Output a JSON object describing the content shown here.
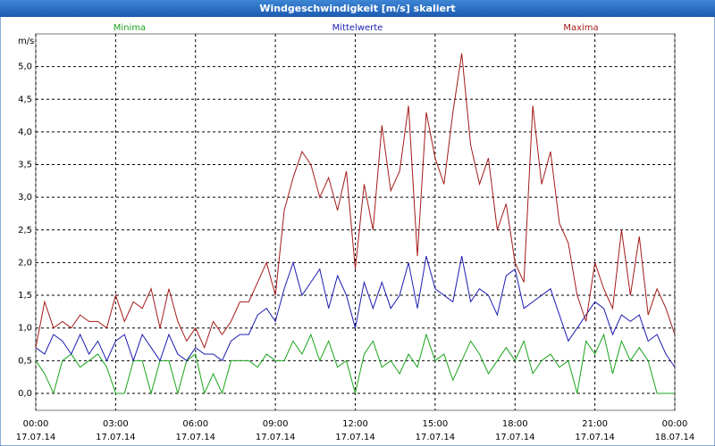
{
  "chart_data": {
    "type": "line",
    "title": "Windgeschwindigkeit [m/s] skaliert",
    "ylabel": "m/s",
    "x": [
      0,
      20,
      40,
      60,
      80,
      100,
      120,
      140,
      160,
      180,
      200,
      220,
      240,
      260,
      280,
      300,
      320,
      340,
      360,
      380,
      400,
      420,
      440,
      460,
      480,
      500,
      520,
      540,
      560,
      580,
      600,
      620,
      640,
      660,
      680,
      700,
      720,
      740,
      760,
      780,
      800,
      820,
      840,
      860,
      880,
      900,
      920,
      940,
      960,
      980,
      1000,
      1020,
      1040,
      1060,
      1080,
      1100,
      1120,
      1140,
      1160,
      1180,
      1200,
      1220,
      1240,
      1260,
      1280,
      1300,
      1320,
      1340,
      1360,
      1380,
      1400,
      1420,
      1440
    ],
    "series": [
      {
        "name": "Minima",
        "color": "#1aa31a",
        "values": [
          0.5,
          0.3,
          0.0,
          0.5,
          0.6,
          0.4,
          0.5,
          0.6,
          0.4,
          0.0,
          0.0,
          0.5,
          0.5,
          0.0,
          0.5,
          0.5,
          0.0,
          0.5,
          0.6,
          0.0,
          0.3,
          0.0,
          0.5,
          0.5,
          0.5,
          0.4,
          0.6,
          0.5,
          0.5,
          0.8,
          0.6,
          0.9,
          0.5,
          0.8,
          0.4,
          0.5,
          0.0,
          0.6,
          0.8,
          0.4,
          0.5,
          0.3,
          0.6,
          0.4,
          0.9,
          0.5,
          0.6,
          0.2,
          0.5,
          0.8,
          0.6,
          0.3,
          0.5,
          0.7,
          0.5,
          0.8,
          0.3,
          0.5,
          0.6,
          0.4,
          0.5,
          0.0,
          0.8,
          0.6,
          0.9,
          0.3,
          0.8,
          0.5,
          0.7,
          0.5,
          0.0,
          0.0,
          0.0
        ]
      },
      {
        "name": "Mittelwerte",
        "color": "#1c1cb0",
        "values": [
          0.7,
          0.6,
          0.9,
          0.8,
          0.6,
          0.9,
          0.6,
          0.8,
          0.5,
          0.8,
          0.9,
          0.5,
          0.9,
          0.7,
          0.5,
          0.9,
          0.6,
          0.5,
          0.7,
          0.6,
          0.6,
          0.5,
          0.8,
          0.9,
          0.9,
          1.2,
          1.3,
          1.1,
          1.6,
          2.0,
          1.5,
          1.7,
          1.9,
          1.3,
          1.8,
          1.5,
          1.0,
          1.7,
          1.3,
          1.7,
          1.3,
          1.5,
          2.0,
          1.3,
          2.1,
          1.6,
          1.5,
          1.4,
          2.1,
          1.4,
          1.6,
          1.5,
          1.2,
          1.8,
          1.9,
          1.3,
          1.4,
          1.5,
          1.6,
          1.2,
          0.8,
          1.0,
          1.2,
          1.4,
          1.3,
          0.9,
          1.2,
          1.1,
          1.2,
          0.8,
          0.9,
          0.6,
          0.4
        ]
      },
      {
        "name": "Maxima",
        "color": "#a31a1a",
        "values": [
          0.7,
          1.4,
          1.0,
          1.1,
          1.0,
          1.2,
          1.1,
          1.1,
          1.0,
          1.5,
          1.1,
          1.4,
          1.3,
          1.6,
          1.0,
          1.6,
          1.1,
          0.8,
          1.0,
          0.7,
          1.1,
          0.9,
          1.1,
          1.4,
          1.4,
          1.7,
          2.0,
          1.5,
          2.8,
          3.3,
          3.7,
          3.5,
          3.0,
          3.3,
          2.8,
          3.4,
          1.9,
          3.2,
          2.5,
          4.1,
          3.1,
          3.4,
          4.4,
          2.1,
          4.3,
          3.6,
          3.2,
          4.3,
          5.2,
          3.8,
          3.2,
          3.6,
          2.5,
          2.9,
          2.0,
          1.7,
          4.4,
          3.2,
          3.7,
          2.6,
          2.3,
          1.5,
          1.1,
          2.0,
          1.6,
          1.3,
          2.5,
          1.5,
          2.4,
          1.2,
          1.6,
          1.3,
          0.9
        ]
      }
    ],
    "xlim": [
      0,
      1440
    ],
    "xticks": [
      {
        "value": 0,
        "label": "00:00",
        "sublabel": "17.07.14"
      },
      {
        "value": 180,
        "label": "03:00",
        "sublabel": "17.07.14"
      },
      {
        "value": 360,
        "label": "06:00",
        "sublabel": "17.07.14"
      },
      {
        "value": 540,
        "label": "09:00",
        "sublabel": "17.07.14"
      },
      {
        "value": 720,
        "label": "12:00",
        "sublabel": "17.07.14"
      },
      {
        "value": 900,
        "label": "15:00",
        "sublabel": "17.07.14"
      },
      {
        "value": 1080,
        "label": "18:00",
        "sublabel": "17.07.14"
      },
      {
        "value": 1260,
        "label": "21:00",
        "sublabel": "17.07.14"
      },
      {
        "value": 1440,
        "label": "00:00",
        "sublabel": "18.07.14"
      }
    ],
    "ylim": [
      -0.26,
      5.5
    ],
    "yticks": [
      {
        "value": 0,
        "label": "0,0"
      },
      {
        "value": 0.5,
        "label": "0,5"
      },
      {
        "value": 1,
        "label": "1,0"
      },
      {
        "value": 1.5,
        "label": "1,5"
      },
      {
        "value": 2,
        "label": "2,0"
      },
      {
        "value": 2.5,
        "label": "2,5"
      },
      {
        "value": 3,
        "label": "3,0"
      },
      {
        "value": 3.5,
        "label": "3,5"
      },
      {
        "value": 4,
        "label": "4,0"
      },
      {
        "value": 4.5,
        "label": "4,5"
      },
      {
        "value": 5,
        "label": "5,0"
      }
    ],
    "grid": true
  }
}
